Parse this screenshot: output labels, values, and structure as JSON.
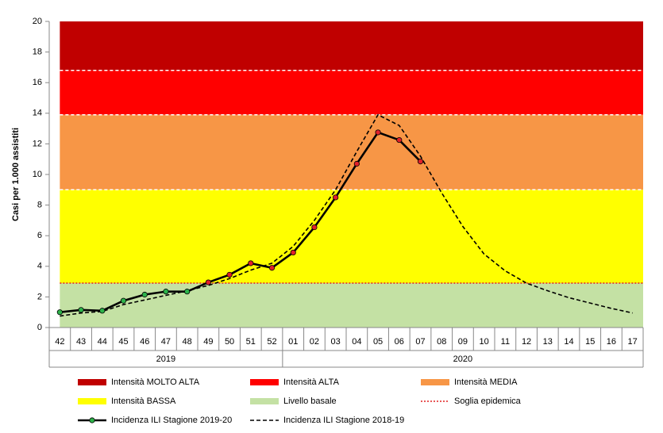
{
  "chart_data": {
    "type": "line",
    "y_label": "Casi per 1.000 assistiti",
    "groups": [
      {
        "label": "2019",
        "categories": [
          "42",
          "43",
          "44",
          "45",
          "46",
          "47",
          "48",
          "49",
          "50",
          "51",
          "52"
        ]
      },
      {
        "label": "2020",
        "categories": [
          "01",
          "02",
          "03",
          "04",
          "05",
          "06",
          "07",
          "08",
          "09",
          "10",
          "11",
          "12",
          "13",
          "14",
          "15",
          "16",
          "17"
        ]
      }
    ],
    "ylim": [
      0,
      20
    ],
    "yticks": [
      0,
      2,
      4,
      6,
      8,
      10,
      12,
      14,
      16,
      18,
      20
    ],
    "bands": [
      {
        "name": "Intensità MOLTO ALTA",
        "color": "#c00000",
        "from": 16.8,
        "to": 20
      },
      {
        "name": "Intensità ALTA",
        "color": "#ff0000",
        "from": 13.9,
        "to": 16.8
      },
      {
        "name": "Intensità MEDIA",
        "color": "#f79646",
        "from": 9,
        "to": 13.9
      },
      {
        "name": "Intensità BASSA",
        "color": "#ffff00",
        "from": 2.9,
        "to": 9
      },
      {
        "name": "Livello basale",
        "color": "#c4e1a4",
        "from": 0,
        "to": 2.9
      }
    ],
    "threshold": {
      "name": "Soglia epidemica",
      "value": 2.9,
      "color": "#e02020"
    },
    "series": [
      {
        "name": "Incidenza ILI Stagione 2019-20",
        "color": "#000000",
        "marker_color": "#2db34a",
        "marker_color_late": "#e0202a",
        "dashed": false,
        "values": [
          1.0,
          1.15,
          1.1,
          1.75,
          2.15,
          2.35,
          2.35,
          2.95,
          3.45,
          4.2,
          3.9,
          4.9,
          6.55,
          8.5,
          10.7,
          12.75,
          12.25,
          10.85,
          null,
          null,
          null,
          null,
          null,
          null,
          null,
          null,
          null,
          null
        ]
      },
      {
        "name": "Incidenza ILI Stagione 2018-19",
        "color": "#000000",
        "dashed": true,
        "values": [
          0.75,
          0.95,
          1.05,
          1.5,
          1.8,
          2.1,
          2.4,
          2.75,
          3.2,
          3.75,
          4.2,
          5.3,
          7.0,
          9.0,
          11.5,
          13.9,
          13.2,
          11.2,
          8.8,
          6.6,
          4.8,
          3.7,
          2.9,
          2.4,
          1.95,
          1.6,
          1.25,
          0.95
        ]
      }
    ]
  }
}
